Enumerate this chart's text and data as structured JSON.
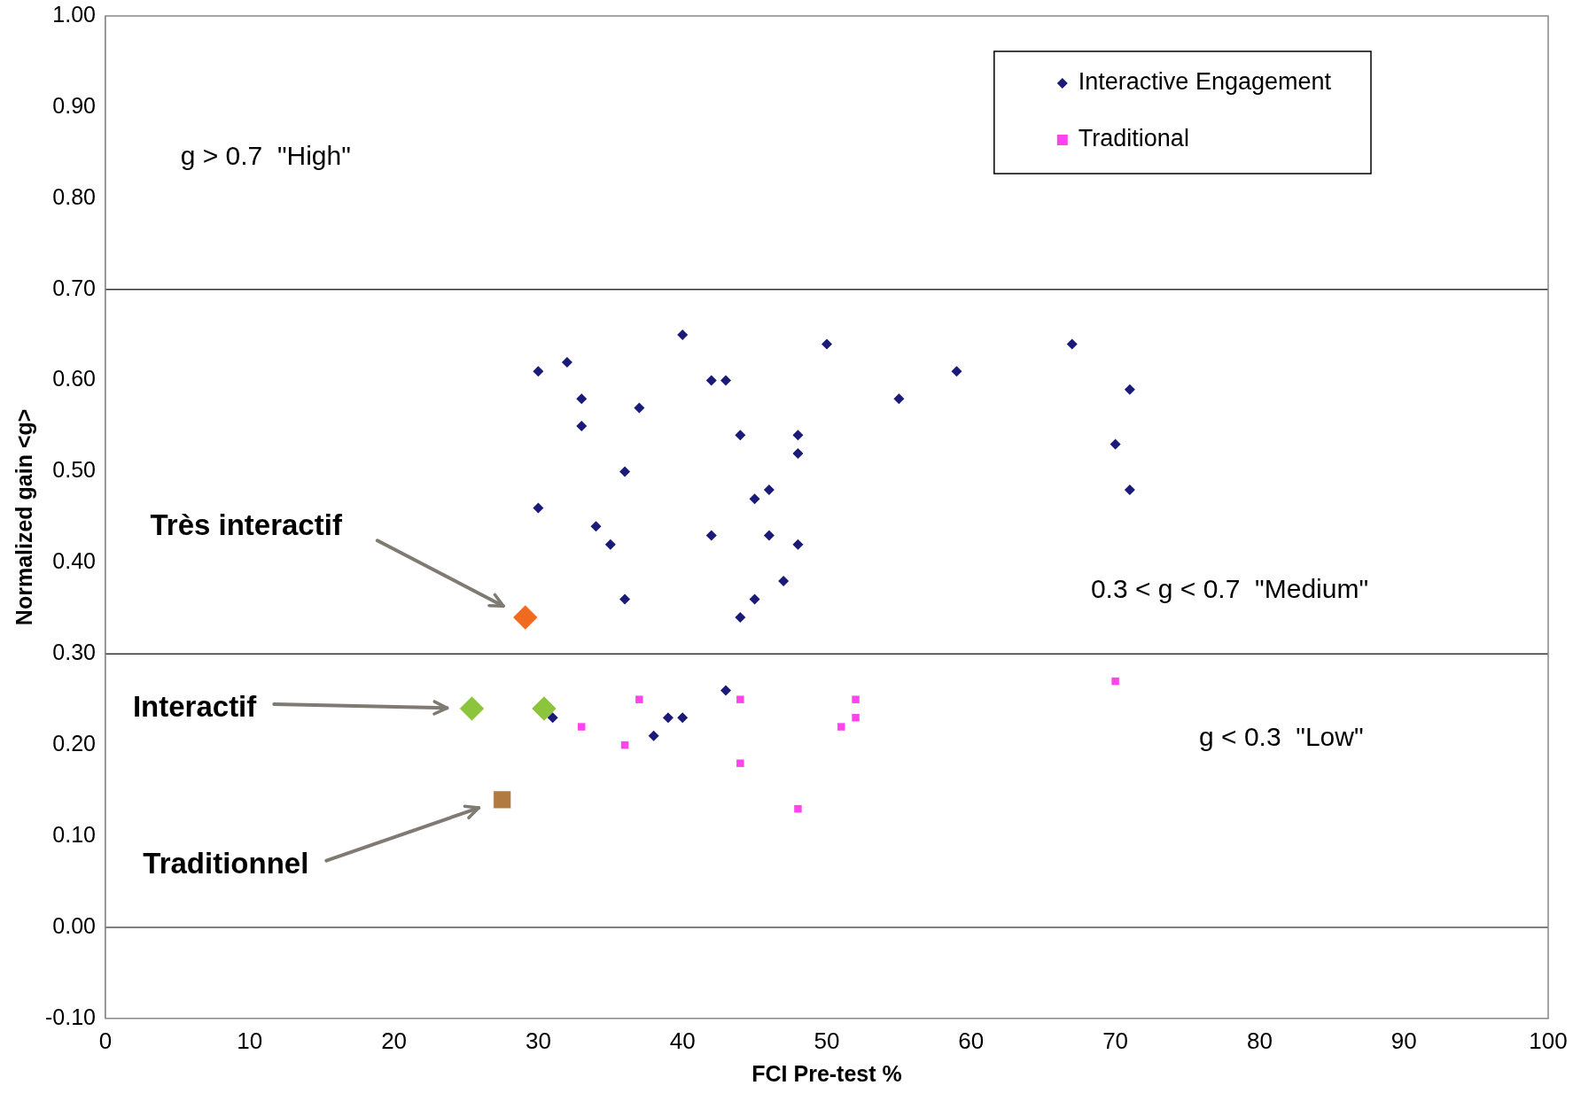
{
  "chart_data": {
    "type": "scatter",
    "xlabel": "FCI Pre-test %",
    "ylabel": "Normalized gain <g>",
    "xlim": [
      0,
      100
    ],
    "xticks": [
      0,
      10,
      20,
      30,
      40,
      50,
      60,
      70,
      80,
      90,
      100
    ],
    "ylim": [
      -0.1,
      1
    ],
    "yticks": [
      {
        "value": -0.1,
        "label": "-0.10"
      },
      {
        "value": 0,
        "label": "0.00"
      },
      {
        "value": 0.1,
        "label": "0.10"
      },
      {
        "value": 0.2,
        "label": "0.20"
      },
      {
        "value": 0.3,
        "label": "0.30"
      },
      {
        "value": 0.4,
        "label": "0.40"
      },
      {
        "value": 0.5,
        "label": "0.50"
      },
      {
        "value": 0.6,
        "label": "0.60"
      },
      {
        "value": 0.7,
        "label": "0.70"
      },
      {
        "value": 0.8,
        "label": "0.80"
      },
      {
        "value": 0.9,
        "label": "0.90"
      },
      {
        "value": 1,
        "label": "1.00"
      }
    ],
    "grid": false,
    "legend": "top right",
    "ref_lines": [
      {
        "axis": "y",
        "value": 0.7,
        "color": "#333333"
      },
      {
        "axis": "y",
        "value": 0.3,
        "color": "#333333"
      },
      {
        "axis": "y",
        "value": 0,
        "color": "#555555"
      }
    ],
    "series": [
      {
        "name": "Interactive Engagement",
        "color": "#1a1a78",
        "marker": "diamond",
        "x": [
          30,
          32,
          33,
          33,
          37,
          36,
          30,
          34,
          35,
          36,
          40,
          42,
          43,
          44,
          42,
          45,
          46,
          46,
          45,
          44,
          47,
          48,
          48,
          48,
          50,
          55,
          59,
          67,
          71,
          70,
          71,
          43,
          31,
          39,
          40,
          38
        ],
        "values": [
          0.61,
          0.62,
          0.58,
          0.55,
          0.57,
          0.5,
          0.46,
          0.44,
          0.42,
          0.36,
          0.65,
          0.6,
          0.6,
          0.54,
          0.43,
          0.47,
          0.48,
          0.43,
          0.36,
          0.34,
          0.38,
          0.54,
          0.52,
          0.42,
          0.64,
          0.58,
          0.61,
          0.64,
          0.59,
          0.53,
          0.48,
          0.26,
          0.23,
          0.23,
          0.23,
          0.21
        ]
      },
      {
        "name": "Traditional",
        "color": "#ff44ee",
        "marker": "square",
        "x": [
          33,
          36,
          37,
          44,
          44,
          48,
          51,
          52,
          52,
          70
        ],
        "values": [
          0.22,
          0.2,
          0.25,
          0.25,
          0.18,
          0.13,
          0.22,
          0.25,
          0.23,
          0.27
        ]
      },
      {
        "color": "#f06a20",
        "marker": "diamond",
        "x": [
          29.1
        ],
        "values": [
          0.34
        ]
      },
      {
        "color": "#8cc43c",
        "marker": "diamond",
        "x": [
          25.4,
          30.4
        ],
        "values": [
          0.24,
          0.24
        ]
      },
      {
        "color": "#b07a40",
        "marker": "square",
        "x": [
          27.5
        ],
        "values": [
          0.14
        ]
      }
    ],
    "annotations": [
      "g > 0.7  \"High\"",
      "0.3 < g < 0.7  \"Medium\"",
      "g < 0.3  \"Low\"",
      "Très interactif",
      "Interactif",
      "Traditionnel"
    ]
  }
}
